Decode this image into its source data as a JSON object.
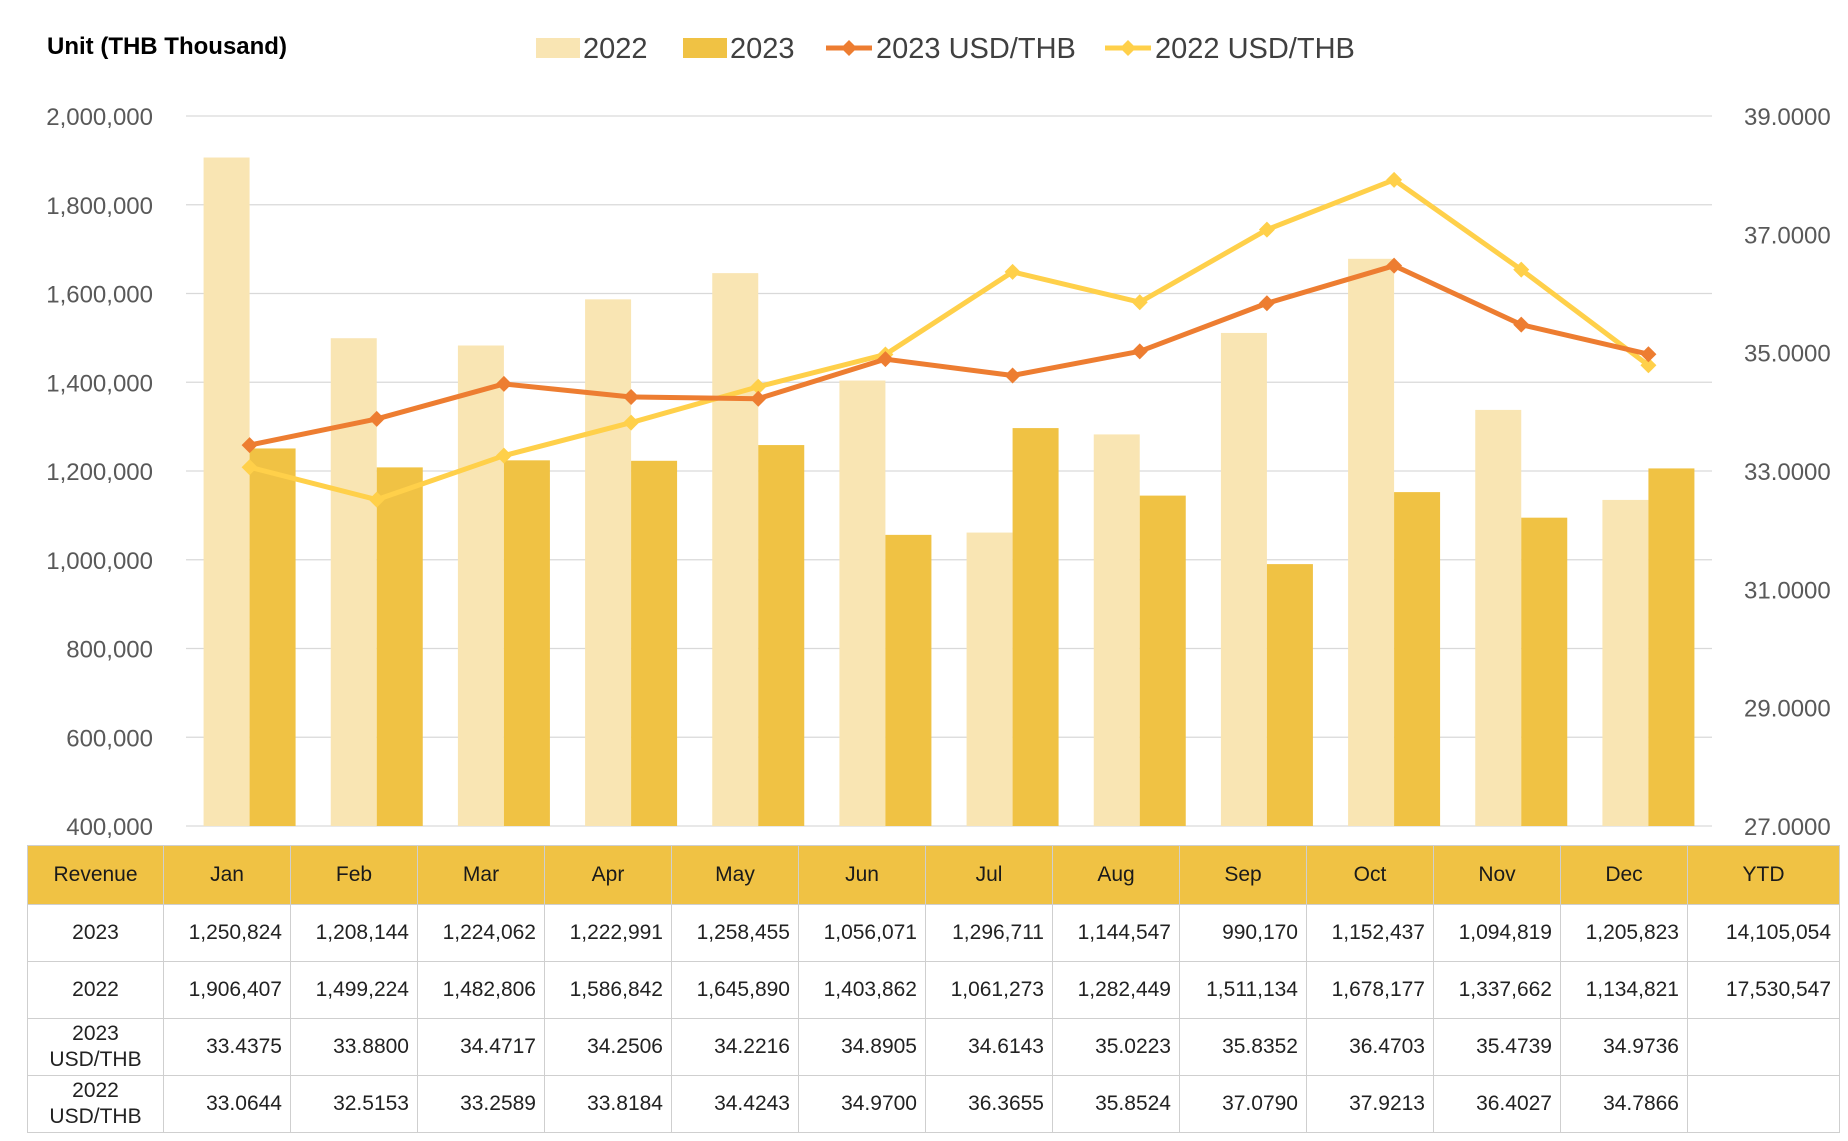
{
  "chart_data": {
    "type": "bar",
    "unit_label": "Unit (THB  Thousand)",
    "categories": [
      "Jan",
      "Feb",
      "Mar",
      "Apr",
      "May",
      "Jun",
      "Jul",
      "Aug",
      "Sep",
      "Oct",
      "Nov",
      "Dec"
    ],
    "series": [
      {
        "name": "2022",
        "kind": "bar",
        "axis": "left",
        "color": "#f9e5b3",
        "values": [
          1906407,
          1499224,
          1482806,
          1586842,
          1645890,
          1403862,
          1061273,
          1282449,
          1511134,
          1678177,
          1337662,
          1134821
        ]
      },
      {
        "name": "2023",
        "kind": "bar",
        "axis": "left",
        "color": "#f0c244",
        "values": [
          1250824,
          1208144,
          1224062,
          1222991,
          1258455,
          1056071,
          1296711,
          1144547,
          990170,
          1152437,
          1094819,
          1205823
        ]
      },
      {
        "name": "2023 USD/THB",
        "kind": "line",
        "axis": "right",
        "color": "#ed7d31",
        "values": [
          33.4375,
          33.88,
          34.4717,
          34.2506,
          34.2216,
          34.8905,
          34.6143,
          35.0223,
          35.8352,
          36.4703,
          35.4739,
          34.9736
        ]
      },
      {
        "name": "2022 USD/THB",
        "kind": "line",
        "axis": "right",
        "color": "#ffd04a",
        "values": [
          33.0644,
          32.5153,
          33.2589,
          33.8184,
          34.4243,
          34.97,
          36.3655,
          35.8524,
          37.079,
          37.9213,
          36.4027,
          34.7866
        ]
      }
    ],
    "y_left": {
      "min": 400000,
      "max": 2000000,
      "step": 200000,
      "tick_labels": [
        "400,000",
        "600,000",
        "800,000",
        "1,000,000",
        "1,200,000",
        "1,400,000",
        "1,600,000",
        "1,800,000",
        "2,000,000"
      ]
    },
    "y_right": {
      "min": 27,
      "max": 39,
      "step": 2,
      "tick_labels": [
        "27.0000",
        "29.0000",
        "31.0000",
        "33.0000",
        "35.0000",
        "37.0000",
        "39.0000"
      ]
    },
    "grid": true,
    "legend_position": "top"
  },
  "table": {
    "header": [
      "Revenue",
      "Jan",
      "Feb",
      "Mar",
      "Apr",
      "May",
      "Jun",
      "Jul",
      "Aug",
      "Sep",
      "Oct",
      "Nov",
      "Dec",
      "YTD"
    ],
    "rows": [
      {
        "label": "2023",
        "cells": [
          "1,250,824",
          "1,208,144",
          "1,224,062",
          "1,222,991",
          "1,258,455",
          "1,056,071",
          "1,296,711",
          "1,144,547",
          "990,170",
          "1,152,437",
          "1,094,819",
          "1,205,823",
          "14,105,054"
        ]
      },
      {
        "label": "2022",
        "cells": [
          "1,906,407",
          "1,499,224",
          "1,482,806",
          "1,586,842",
          "1,645,890",
          "1,403,862",
          "1,061,273",
          "1,282,449",
          "1,511,134",
          "1,678,177",
          "1,337,662",
          "1,134,821",
          "17,530,547"
        ]
      },
      {
        "label": "2023\nUSD/THB",
        "cells": [
          "33.4375",
          "33.8800",
          "34.4717",
          "34.2506",
          "34.2216",
          "34.8905",
          "34.6143",
          "35.0223",
          "35.8352",
          "36.4703",
          "35.4739",
          "34.9736",
          ""
        ]
      },
      {
        "label": "2022\nUSD/THB",
        "cells": [
          "33.0644",
          "32.5153",
          "33.2589",
          "33.8184",
          "34.4243",
          "34.9700",
          "36.3655",
          "35.8524",
          "37.0790",
          "37.9213",
          "36.4027",
          "34.7866",
          ""
        ]
      }
    ]
  }
}
